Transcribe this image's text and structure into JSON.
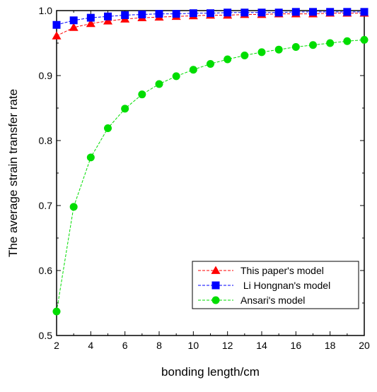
{
  "chart_data": {
    "type": "line",
    "title": "",
    "xlabel": "bonding length/cm",
    "ylabel": "The average strain transfer rate",
    "xlim": [
      2,
      20
    ],
    "ylim": [
      0.5,
      1.0
    ],
    "x_ticks": [
      2,
      4,
      6,
      8,
      10,
      12,
      14,
      16,
      18,
      20
    ],
    "x_tick_labels": [
      "2",
      "4",
      "6",
      "8",
      "10",
      "12",
      "14",
      "16",
      "18",
      "20"
    ],
    "y_ticks": [
      0.5,
      0.6,
      0.7,
      0.8,
      0.9,
      1.0
    ],
    "y_tick_labels": [
      "0.5",
      "0.6",
      "0.7",
      "0.8",
      "0.9",
      "1.0"
    ],
    "grid": false,
    "legend_position": "bottom-right",
    "x": [
      2,
      3,
      4,
      5,
      6,
      7,
      8,
      9,
      10,
      11,
      12,
      13,
      14,
      15,
      16,
      17,
      18,
      19,
      20
    ],
    "series": [
      {
        "name": "This paper's model",
        "color": "#ff0000",
        "marker": "triangle",
        "values": [
          0.961,
          0.974,
          0.98,
          0.984,
          0.987,
          0.989,
          0.99,
          0.991,
          0.992,
          0.993,
          0.993,
          0.994,
          0.994,
          0.995,
          0.995,
          0.995,
          0.996,
          0.996,
          0.996
        ]
      },
      {
        "name": " Li Hongnan's model",
        "color": "#0000ff",
        "marker": "square",
        "values": [
          0.978,
          0.985,
          0.989,
          0.991,
          0.993,
          0.994,
          0.995,
          0.995,
          0.996,
          0.996,
          0.997,
          0.997,
          0.997,
          0.997,
          0.998,
          0.998,
          0.998,
          0.998,
          0.998
        ]
      },
      {
        "name": "Ansari's model",
        "color": "#00dd00",
        "marker": "circle",
        "values": [
          0.537,
          0.698,
          0.774,
          0.819,
          0.849,
          0.871,
          0.887,
          0.899,
          0.909,
          0.918,
          0.925,
          0.931,
          0.936,
          0.94,
          0.944,
          0.947,
          0.95,
          0.953,
          0.955
        ]
      }
    ]
  }
}
